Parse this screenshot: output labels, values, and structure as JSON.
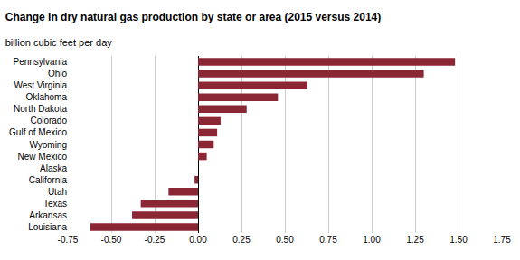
{
  "chart_data": {
    "type": "bar",
    "orientation": "horizontal",
    "title": "Change in dry natural gas production by state or area (2015 versus 2014)",
    "subtitle": "billion cubic feet per day",
    "categories": [
      "Louisiana",
      "Arkansas",
      "Texas",
      "Utah",
      "California",
      "Alaska",
      "New Mexico",
      "Wyoming",
      "Gulf of Mexico",
      "Colorado",
      "North Dakota",
      "Oklahoma",
      "West Virginia",
      "Ohio",
      "Pennsylvania"
    ],
    "values": [
      -0.62,
      -0.38,
      -0.33,
      -0.17,
      -0.02,
      0.0,
      0.05,
      0.09,
      0.11,
      0.13,
      0.28,
      0.46,
      0.63,
      1.3,
      1.48
    ],
    "color": "#8b2635",
    "xlim": [
      -0.75,
      1.75
    ],
    "xticks": [
      -0.75,
      {
        "value": -0.5,
        "label": "-0.50"
      },
      -0.25,
      {
        "value": 0.0,
        "label": "0.00"
      },
      0.25,
      {
        "value": 0.5,
        "label": "0.50"
      },
      0.75,
      {
        "value": 1.0,
        "label": "1.00"
      },
      1.25,
      {
        "value": 1.5,
        "label": "1.50"
      },
      1.75
    ],
    "grid": true
  }
}
